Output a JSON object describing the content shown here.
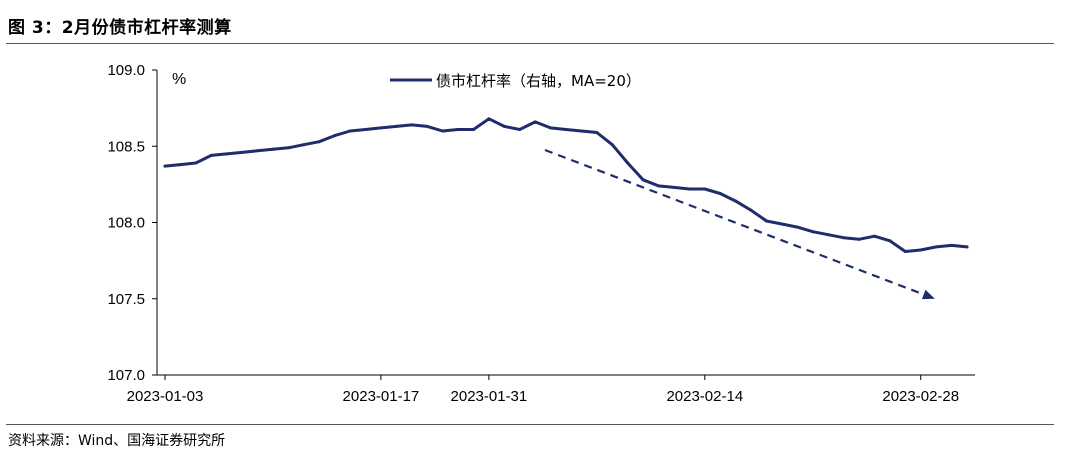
{
  "figure": {
    "title": "图 3：2月份债市杠杆率测算",
    "source": "资料来源：Wind、国海证券研究所"
  },
  "colors": {
    "series": "#1f2d6b",
    "axis": "#000000"
  },
  "chart_data": {
    "type": "line",
    "title": "",
    "xlabel": "",
    "ylabel": "%",
    "ylim": [
      107.0,
      109.0
    ],
    "yticks": [
      "109.0",
      "108.5",
      "108.0",
      "107.5",
      "107.0"
    ],
    "xticks": [
      "2023-01-03",
      "2023-01-17",
      "2023-01-31",
      "2023-02-14",
      "2023-02-28"
    ],
    "legend": "top-center",
    "grid": false,
    "series": [
      {
        "name": "债市杠杆率（右轴，MA=20）",
        "x": [
          "2023-01-03",
          "2023-01-04",
          "2023-01-05",
          "2023-01-06",
          "2023-01-07",
          "2023-01-08",
          "2023-01-09",
          "2023-01-10",
          "2023-01-11",
          "2023-01-12",
          "2023-01-13",
          "2023-01-14",
          "2023-01-15",
          "2023-01-16",
          "2023-01-17",
          "2023-01-18",
          "2023-01-19",
          "2023-01-20",
          "2023-01-28",
          "2023-01-29",
          "2023-01-30",
          "2023-01-31",
          "2023-02-01",
          "2023-02-02",
          "2023-02-03",
          "2023-02-04",
          "2023-02-05",
          "2023-02-06",
          "2023-02-07",
          "2023-02-08",
          "2023-02-09",
          "2023-02-10",
          "2023-02-11",
          "2023-02-12",
          "2023-02-13",
          "2023-02-14",
          "2023-02-15",
          "2023-02-16",
          "2023-02-17",
          "2023-02-18",
          "2023-02-19",
          "2023-02-20",
          "2023-02-21",
          "2023-02-22",
          "2023-02-23",
          "2023-02-24",
          "2023-02-25",
          "2023-02-26",
          "2023-02-27",
          "2023-02-28",
          "2023-03-01",
          "2023-03-02",
          "2023-03-03"
        ],
        "values": [
          108.37,
          108.38,
          108.39,
          108.44,
          108.45,
          108.46,
          108.47,
          108.48,
          108.49,
          108.51,
          108.53,
          108.57,
          108.6,
          108.61,
          108.62,
          108.63,
          108.64,
          108.63,
          108.6,
          108.61,
          108.61,
          108.68,
          108.63,
          108.61,
          108.66,
          108.62,
          108.61,
          108.6,
          108.59,
          108.51,
          108.39,
          108.28,
          108.24,
          108.23,
          108.22,
          108.22,
          108.19,
          108.14,
          108.08,
          108.01,
          107.99,
          107.97,
          107.94,
          107.92,
          107.9,
          107.89,
          107.91,
          107.88,
          107.81,
          107.82,
          107.84,
          107.85,
          107.84
        ]
      }
    ],
    "annotations": [
      {
        "type": "trend-arrow",
        "style": "dashed",
        "direction": "down"
      }
    ]
  }
}
